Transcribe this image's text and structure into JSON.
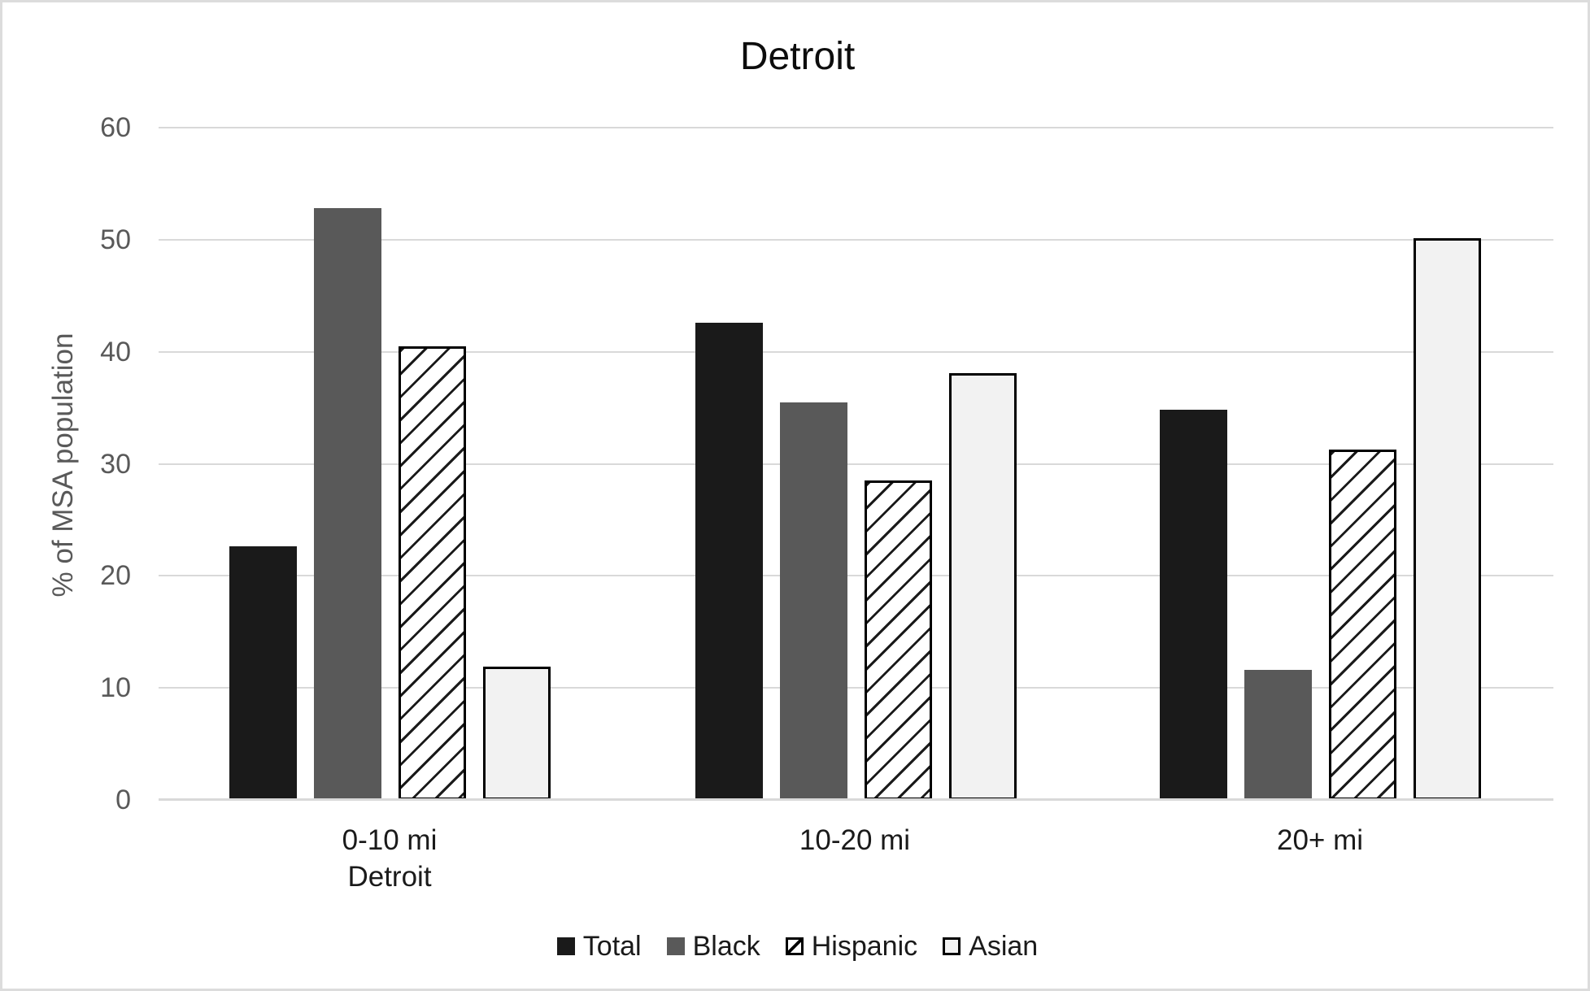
{
  "chart_data": {
    "type": "bar",
    "title": "Detroit",
    "xlabel": "",
    "ylabel": "% of MSA population",
    "ylim": [
      0,
      60
    ],
    "ytick_interval": 10,
    "yticks": [
      0,
      10,
      20,
      30,
      40,
      50,
      60
    ],
    "grid": true,
    "legend_position": "bottom",
    "categories": [
      "0-10 mi\nDetroit",
      "10-20 mi",
      "20+ mi"
    ],
    "series": [
      {
        "name": "Total",
        "values": [
          22.6,
          42.6,
          34.8
        ],
        "fill": "#1a1a1a",
        "pattern": "solid"
      },
      {
        "name": "Black",
        "values": [
          52.8,
          35.5,
          11.6
        ],
        "fill": "#595959",
        "pattern": "solid"
      },
      {
        "name": "Hispanic",
        "values": [
          40.5,
          28.5,
          31.3
        ],
        "fill": "#ffffff",
        "pattern": "diagonal-hatch",
        "border": "#000000"
      },
      {
        "name": "Asian",
        "values": [
          11.9,
          38.1,
          50.1
        ],
        "fill": "#f2f2f2",
        "pattern": "solid-outlined",
        "border": "#000000"
      }
    ],
    "colors": {
      "gridline": "#d9d9d9",
      "axis_line": "#d9d9d9",
      "y_tick_label": "#595959",
      "x_category_label": "#1a1a1a",
      "title": "#0d0d0d",
      "page_border": "#dcdcdc"
    }
  }
}
